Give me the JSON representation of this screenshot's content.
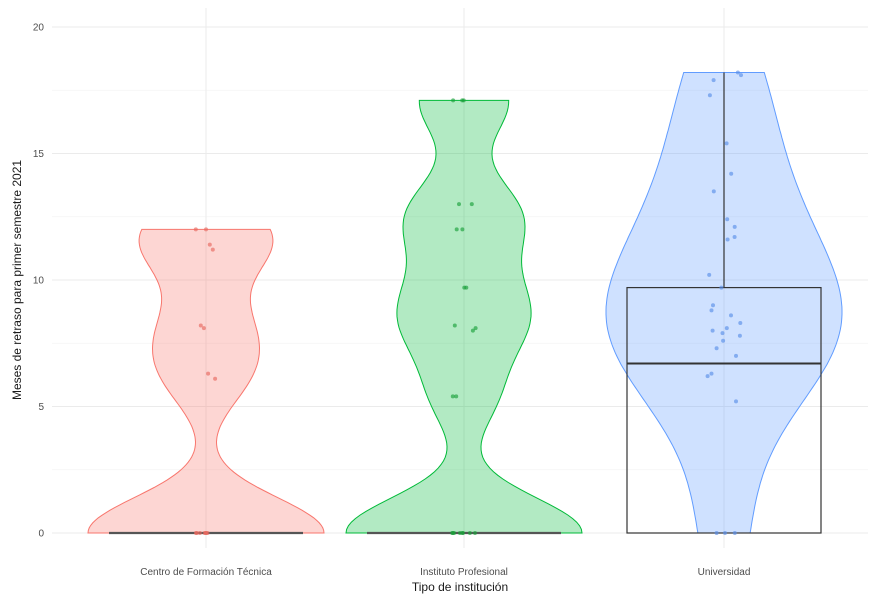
{
  "chart_data": {
    "type": "violin",
    "title": "",
    "xlabel": "Tipo de institución",
    "ylabel": "Meses de retraso para primer semestre 2021",
    "ylim": [
      0,
      20
    ],
    "yticks": [
      0,
      5,
      10,
      15,
      20
    ],
    "grid": true,
    "legend": "none",
    "categories": [
      "Centro de Formación Técnica",
      "Instituto Profesional",
      "Universidad"
    ],
    "colors": {
      "fill": [
        "#f8766d",
        "#00ba38",
        "#619cff"
      ],
      "point": [
        "#e8685f",
        "#1a9f3a",
        "#5a8fe8"
      ]
    },
    "series": [
      {
        "category": "Centro de Formación Técnica",
        "max": 12,
        "box": {
          "q1": 0,
          "median": 0,
          "q3": 0
        },
        "points": [
          0,
          0,
          0,
          0,
          0,
          0,
          0,
          6.1,
          6.3,
          8.1,
          8.2,
          11.2,
          11.4,
          12,
          12
        ]
      },
      {
        "category": "Instituto Profesional",
        "max": 17.1,
        "box": {
          "q1": 0,
          "median": 0,
          "q3": 0
        },
        "points": [
          0,
          0,
          0,
          0,
          0,
          0,
          0,
          0,
          5.4,
          5.4,
          8.0,
          8.1,
          8.2,
          9.7,
          9.7,
          12.0,
          12.0,
          13.0,
          13.0,
          17.1,
          17.1,
          17.1
        ]
      },
      {
        "category": "Universidad",
        "max": 18.2,
        "box": {
          "q1": 0,
          "median": 6.7,
          "q3": 9.7,
          "whisker_high": 18.2
        },
        "points": [
          0,
          0,
          0,
          5.2,
          6.2,
          6.3,
          7.0,
          7.3,
          7.6,
          7.8,
          7.9,
          8.0,
          8.1,
          8.3,
          8.6,
          8.8,
          9.0,
          9.7,
          10.2,
          11.6,
          11.7,
          12.1,
          12.4,
          13.5,
          14.2,
          15.4,
          17.3,
          17.9,
          18.1,
          18.2
        ]
      }
    ]
  }
}
